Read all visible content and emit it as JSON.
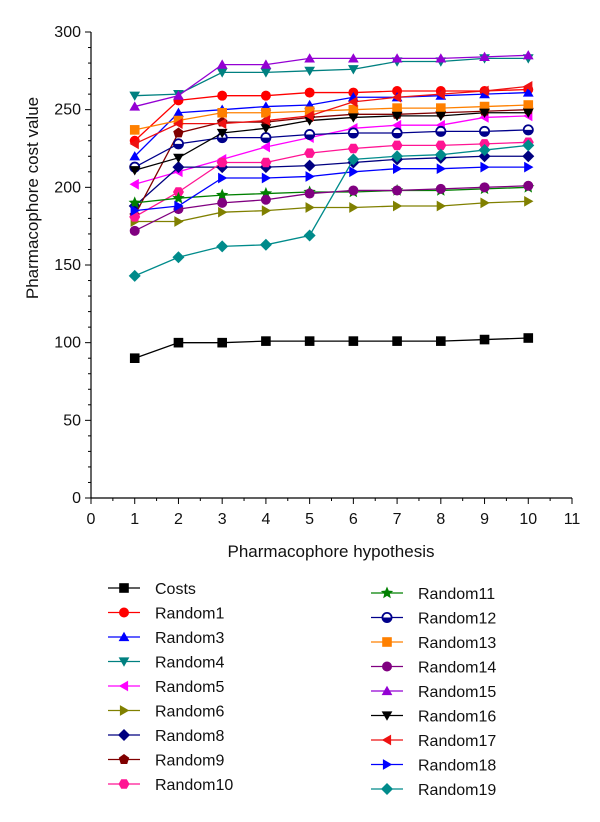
{
  "chart_data": {
    "type": "line",
    "xlabel": "Pharmacophore hypothesis",
    "ylabel": "Pharmacophore cost value",
    "xlim": [
      0,
      11
    ],
    "ylim": [
      0,
      300
    ],
    "xticks": [
      0,
      1,
      2,
      3,
      4,
      5,
      6,
      7,
      8,
      9,
      10,
      11
    ],
    "yticks": [
      0,
      50,
      100,
      150,
      200,
      250,
      300
    ],
    "x": [
      1,
      2,
      3,
      4,
      5,
      6,
      7,
      8,
      9,
      10
    ],
    "legend_placement": "bottom",
    "series": [
      {
        "name": "Costs",
        "color": "#000000",
        "marker": "square",
        "values": [
          90,
          100,
          100,
          101,
          101,
          101,
          101,
          101,
          102,
          103
        ]
      },
      {
        "name": "Random1",
        "color": "#ff0000",
        "marker": "circle",
        "values": [
          230,
          256,
          259,
          259,
          261,
          261,
          262,
          262,
          262,
          263
        ]
      },
      {
        "name": "Random3",
        "color": "#0000ff",
        "marker": "triangle-up",
        "values": [
          220,
          248,
          250,
          252,
          253,
          258,
          258,
          259,
          260,
          261
        ]
      },
      {
        "name": "Random4",
        "color": "#008080",
        "marker": "triangle-down",
        "values": [
          259,
          260,
          274,
          274,
          275,
          276,
          281,
          281,
          283,
          283
        ]
      },
      {
        "name": "Random5",
        "color": "#ff00ff",
        "marker": "triangle-left",
        "values": [
          202,
          210,
          218,
          226,
          232,
          238,
          240,
          240,
          245,
          246
        ]
      },
      {
        "name": "Random6",
        "color": "#808000",
        "marker": "triangle-right",
        "values": [
          178,
          178,
          184,
          185,
          187,
          187,
          188,
          188,
          190,
          191
        ]
      },
      {
        "name": "Random8",
        "color": "#000080",
        "marker": "diamond",
        "values": [
          188,
          213,
          213,
          213,
          214,
          216,
          218,
          219,
          220,
          220
        ]
      },
      {
        "name": "Random9",
        "color": "#800000",
        "marker": "pentagon",
        "values": [
          182,
          235,
          242,
          242,
          245,
          247,
          247,
          248,
          249,
          250
        ]
      },
      {
        "name": "Random10",
        "color": "#ff1493",
        "marker": "hexagon",
        "values": [
          181,
          197,
          216,
          216,
          222,
          225,
          227,
          227,
          228,
          229
        ]
      },
      {
        "name": "Random11",
        "color": "#008000",
        "marker": "star",
        "values": [
          190,
          193,
          195,
          196,
          197,
          197,
          198,
          198,
          199,
          200
        ]
      },
      {
        "name": "Random12",
        "color": "#00008b",
        "marker": "circle-half",
        "values": [
          213,
          228,
          232,
          232,
          234,
          235,
          235,
          236,
          236,
          237
        ]
      },
      {
        "name": "Random13",
        "color": "#ff8000",
        "marker": "square",
        "values": [
          237,
          243,
          248,
          248,
          249,
          250,
          251,
          251,
          252,
          253
        ]
      },
      {
        "name": "Random14",
        "color": "#800080",
        "marker": "circle",
        "values": [
          172,
          186,
          190,
          192,
          196,
          198,
          198,
          199,
          200,
          201
        ]
      },
      {
        "name": "Random15",
        "color": "#9400d3",
        "marker": "triangle-up",
        "values": [
          252,
          259,
          279,
          279,
          283,
          283,
          283,
          283,
          284,
          285
        ]
      },
      {
        "name": "Random16",
        "color": "#000000",
        "marker": "triangle-down",
        "values": [
          211,
          219,
          235,
          238,
          243,
          245,
          246,
          246,
          248,
          248
        ]
      },
      {
        "name": "Random17",
        "color": "#ee1111",
        "marker": "triangle-left",
        "values": [
          228,
          241,
          241,
          243,
          246,
          255,
          258,
          260,
          262,
          265
        ]
      },
      {
        "name": "Random18",
        "color": "#0000ff",
        "marker": "triangle-right",
        "values": [
          185,
          188,
          206,
          206,
          207,
          210,
          212,
          212,
          213,
          213
        ]
      },
      {
        "name": "Random19",
        "color": "#008b8b",
        "marker": "diamond",
        "values": [
          143,
          155,
          162,
          163,
          169,
          218,
          220,
          221,
          224,
          227
        ]
      }
    ]
  }
}
